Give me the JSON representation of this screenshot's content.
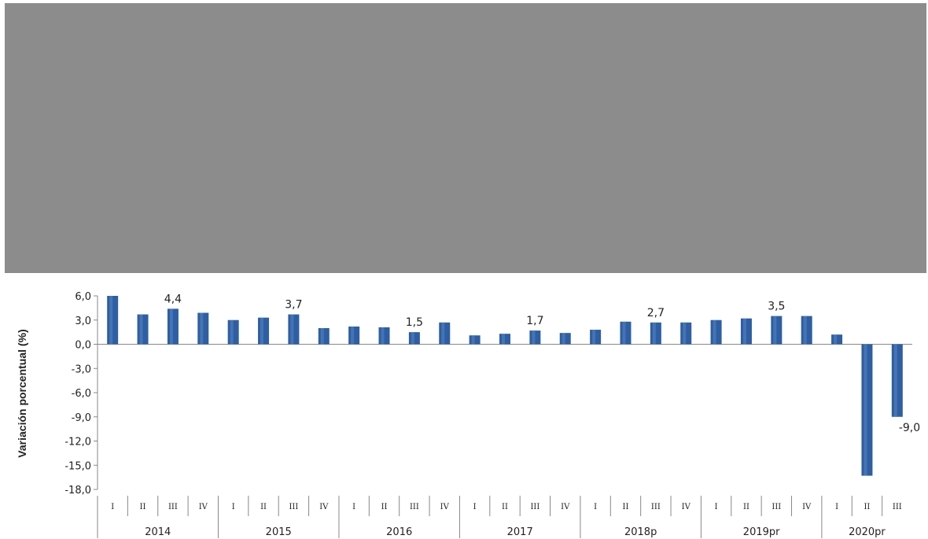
{
  "chart_data": {
    "type": "bar",
    "ylabel": "Variación porcentual (%)",
    "ylim": [
      -18,
      6
    ],
    "yticks": [
      "6,0",
      "3,0",
      "0,0",
      "-3,0",
      "-6,0",
      "-9,0",
      "-12,0",
      "-15,0",
      "-18,0"
    ],
    "grid": false,
    "colors": {
      "bar": "#2e5ea3",
      "bar_highlight": "#5a86c5",
      "axis": "#888888",
      "banner": "#8c8c8c"
    },
    "years": [
      {
        "label": "2014",
        "quarters": [
          "I",
          "II",
          "III",
          "IV"
        ]
      },
      {
        "label": "2015",
        "quarters": [
          "I",
          "II",
          "III",
          "IV"
        ]
      },
      {
        "label": "2016",
        "quarters": [
          "I",
          "II",
          "III",
          "IV"
        ]
      },
      {
        "label": "2017",
        "quarters": [
          "I",
          "II",
          "III",
          "IV"
        ]
      },
      {
        "label": "2018p",
        "quarters": [
          "I",
          "II",
          "III",
          "IV"
        ]
      },
      {
        "label": "2019pr",
        "quarters": [
          "I",
          "II",
          "III",
          "IV"
        ]
      },
      {
        "label": "2020pr",
        "quarters": [
          "I",
          "II",
          "III"
        ]
      }
    ],
    "values": [
      6.0,
      3.7,
      4.4,
      3.9,
      3.0,
      3.3,
      3.7,
      2.0,
      2.2,
      2.1,
      1.5,
      2.7,
      1.1,
      1.3,
      1.7,
      1.4,
      1.8,
      2.8,
      2.7,
      2.7,
      3.0,
      3.2,
      3.5,
      3.5,
      1.2,
      -16.3,
      -9.0
    ],
    "data_labels": [
      {
        "index": 2,
        "text": "4,4"
      },
      {
        "index": 6,
        "text": "3,7"
      },
      {
        "index": 10,
        "text": "1,5"
      },
      {
        "index": 14,
        "text": "1,7"
      },
      {
        "index": 18,
        "text": "2,7"
      },
      {
        "index": 22,
        "text": "3,5"
      },
      {
        "index": 26,
        "text": "-9,0"
      }
    ]
  }
}
